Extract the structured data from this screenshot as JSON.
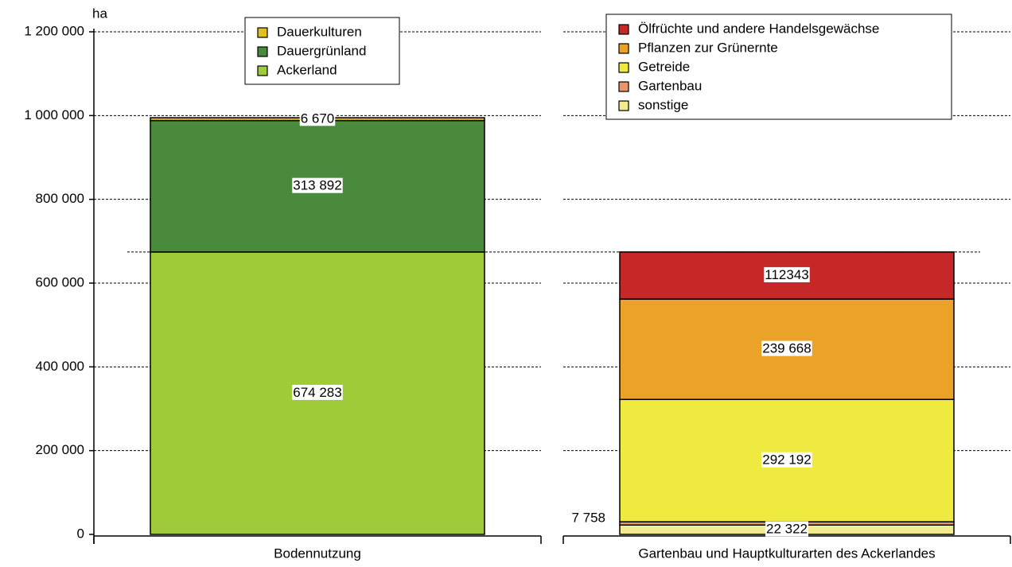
{
  "chart_data": {
    "type": "bar",
    "stacked": true,
    "y_label": "ha",
    "categories": [
      "Bodennutzung",
      "Gartenbau und Hauptkulturarten des Ackerlandes"
    ],
    "series": [
      {
        "name": "Dauerkulturen",
        "color": "#e0c020",
        "values": [
          6670,
          null
        ],
        "value_labels": [
          "6 670",
          null
        ]
      },
      {
        "name": "Dauergrünland",
        "color": "#4a8a3c",
        "values": [
          313892,
          null
        ],
        "value_labels": [
          "313 892",
          null
        ]
      },
      {
        "name": "Ackerland",
        "color": "#a0cc3a",
        "values": [
          674283,
          null
        ],
        "value_labels": [
          "674 283",
          null
        ]
      },
      {
        "name": "Ölfrüchte und andere Handelsgewächse",
        "color": "#c62828",
        "values": [
          null,
          112343
        ],
        "value_labels": [
          null,
          "112343"
        ]
      },
      {
        "name": "Pflanzen zur Grünernte",
        "color": "#eba228",
        "values": [
          null,
          239668
        ],
        "value_labels": [
          null,
          "239 668"
        ]
      },
      {
        "name": "Getreide",
        "color": "#eeea40",
        "values": [
          null,
          292192
        ],
        "value_labels": [
          null,
          "292 192"
        ]
      },
      {
        "name": "Gartenbau",
        "color": "#e8966a",
        "values": [
          null,
          7758
        ],
        "value_labels": [
          null,
          "7 758"
        ]
      },
      {
        "name": "sonstige",
        "color": "#f2ec8c",
        "values": [
          null,
          22322
        ],
        "value_labels": [
          null,
          "22 322"
        ]
      }
    ],
    "ylim": [
      0,
      1200000
    ],
    "yticks": [
      0,
      {
        "value": 200000,
        "label": "200 000"
      },
      {
        "value": 400000,
        "label": "400 000"
      },
      {
        "value": 600000,
        "label": "600 000"
      },
      {
        "value": 800000,
        "label": "800 000"
      },
      {
        "value": 1000000,
        "label": "1 000 000"
      },
      {
        "value": 1200000,
        "label": "1 200 000"
      }
    ],
    "grid": true
  }
}
